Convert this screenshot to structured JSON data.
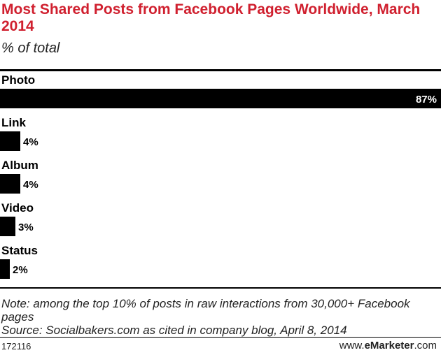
{
  "header": {
    "title": "Most Shared Posts from Facebook Pages Worldwide, March 2014",
    "subtitle": "% of total"
  },
  "chart_data": {
    "type": "bar",
    "orientation": "horizontal",
    "title": "Most Shared Posts from Facebook Pages Worldwide, March 2014",
    "subtitle": "% of total",
    "unit": "%",
    "xlim": [
      0,
      87
    ],
    "grid": false,
    "legend": "none",
    "bar_color": "#000000",
    "categories": [
      "Photo",
      "Link",
      "Album",
      "Video",
      "Status"
    ],
    "values": [
      87,
      4,
      4,
      3,
      2
    ],
    "value_labels": [
      "87%",
      "4%",
      "4%",
      "3%",
      "2%"
    ]
  },
  "footer": {
    "note": "Note: among the top 10% of posts in raw interactions from 30,000+ Facebook pages",
    "source": "Source: Socialbakers.com as cited in company blog, April 8, 2014",
    "chart_id": "172116",
    "brand_prefix": "www.",
    "brand_name": "eMarketer",
    "brand_suffix": ".com"
  }
}
